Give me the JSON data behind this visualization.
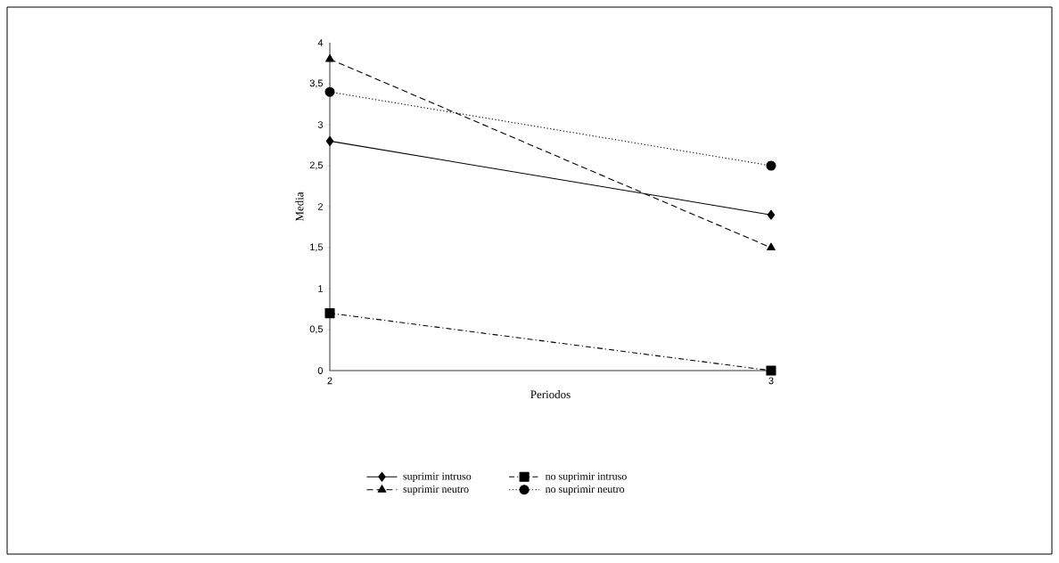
{
  "chart_data": {
    "type": "line",
    "xlabel": "Periodos",
    "ylabel": "Media",
    "categories": [
      "2",
      "3"
    ],
    "series": [
      {
        "name": "suprimir intruso",
        "color": "#000000",
        "values": [
          2.8,
          1.9
        ],
        "marker": "diamond",
        "line_style": "solid"
      },
      {
        "name": "no suprimir intruso",
        "color": "#000000",
        "values": [
          0.7,
          0
        ],
        "marker": "square",
        "line_style": "dashdot"
      },
      {
        "name": "suprimir neutro",
        "color": "#000000",
        "values": [
          3.8,
          1.5
        ],
        "marker": "triangle",
        "line_style": "dashed"
      },
      {
        "name": "no suprimir neutro",
        "color": "#000000",
        "values": [
          3.4,
          2.5
        ],
        "marker": "circle",
        "line_style": "dotted"
      }
    ],
    "ylim": [
      0,
      4
    ],
    "yticks": [
      0,
      {
        "value": 0.5,
        "label": "0,5"
      },
      1,
      {
        "value": 1.5,
        "label": "1,5"
      },
      2,
      {
        "value": 2.5,
        "label": "2,5"
      },
      3,
      {
        "value": 3.5,
        "label": "3,5"
      },
      4
    ],
    "grid": false,
    "legend": "bottom"
  }
}
